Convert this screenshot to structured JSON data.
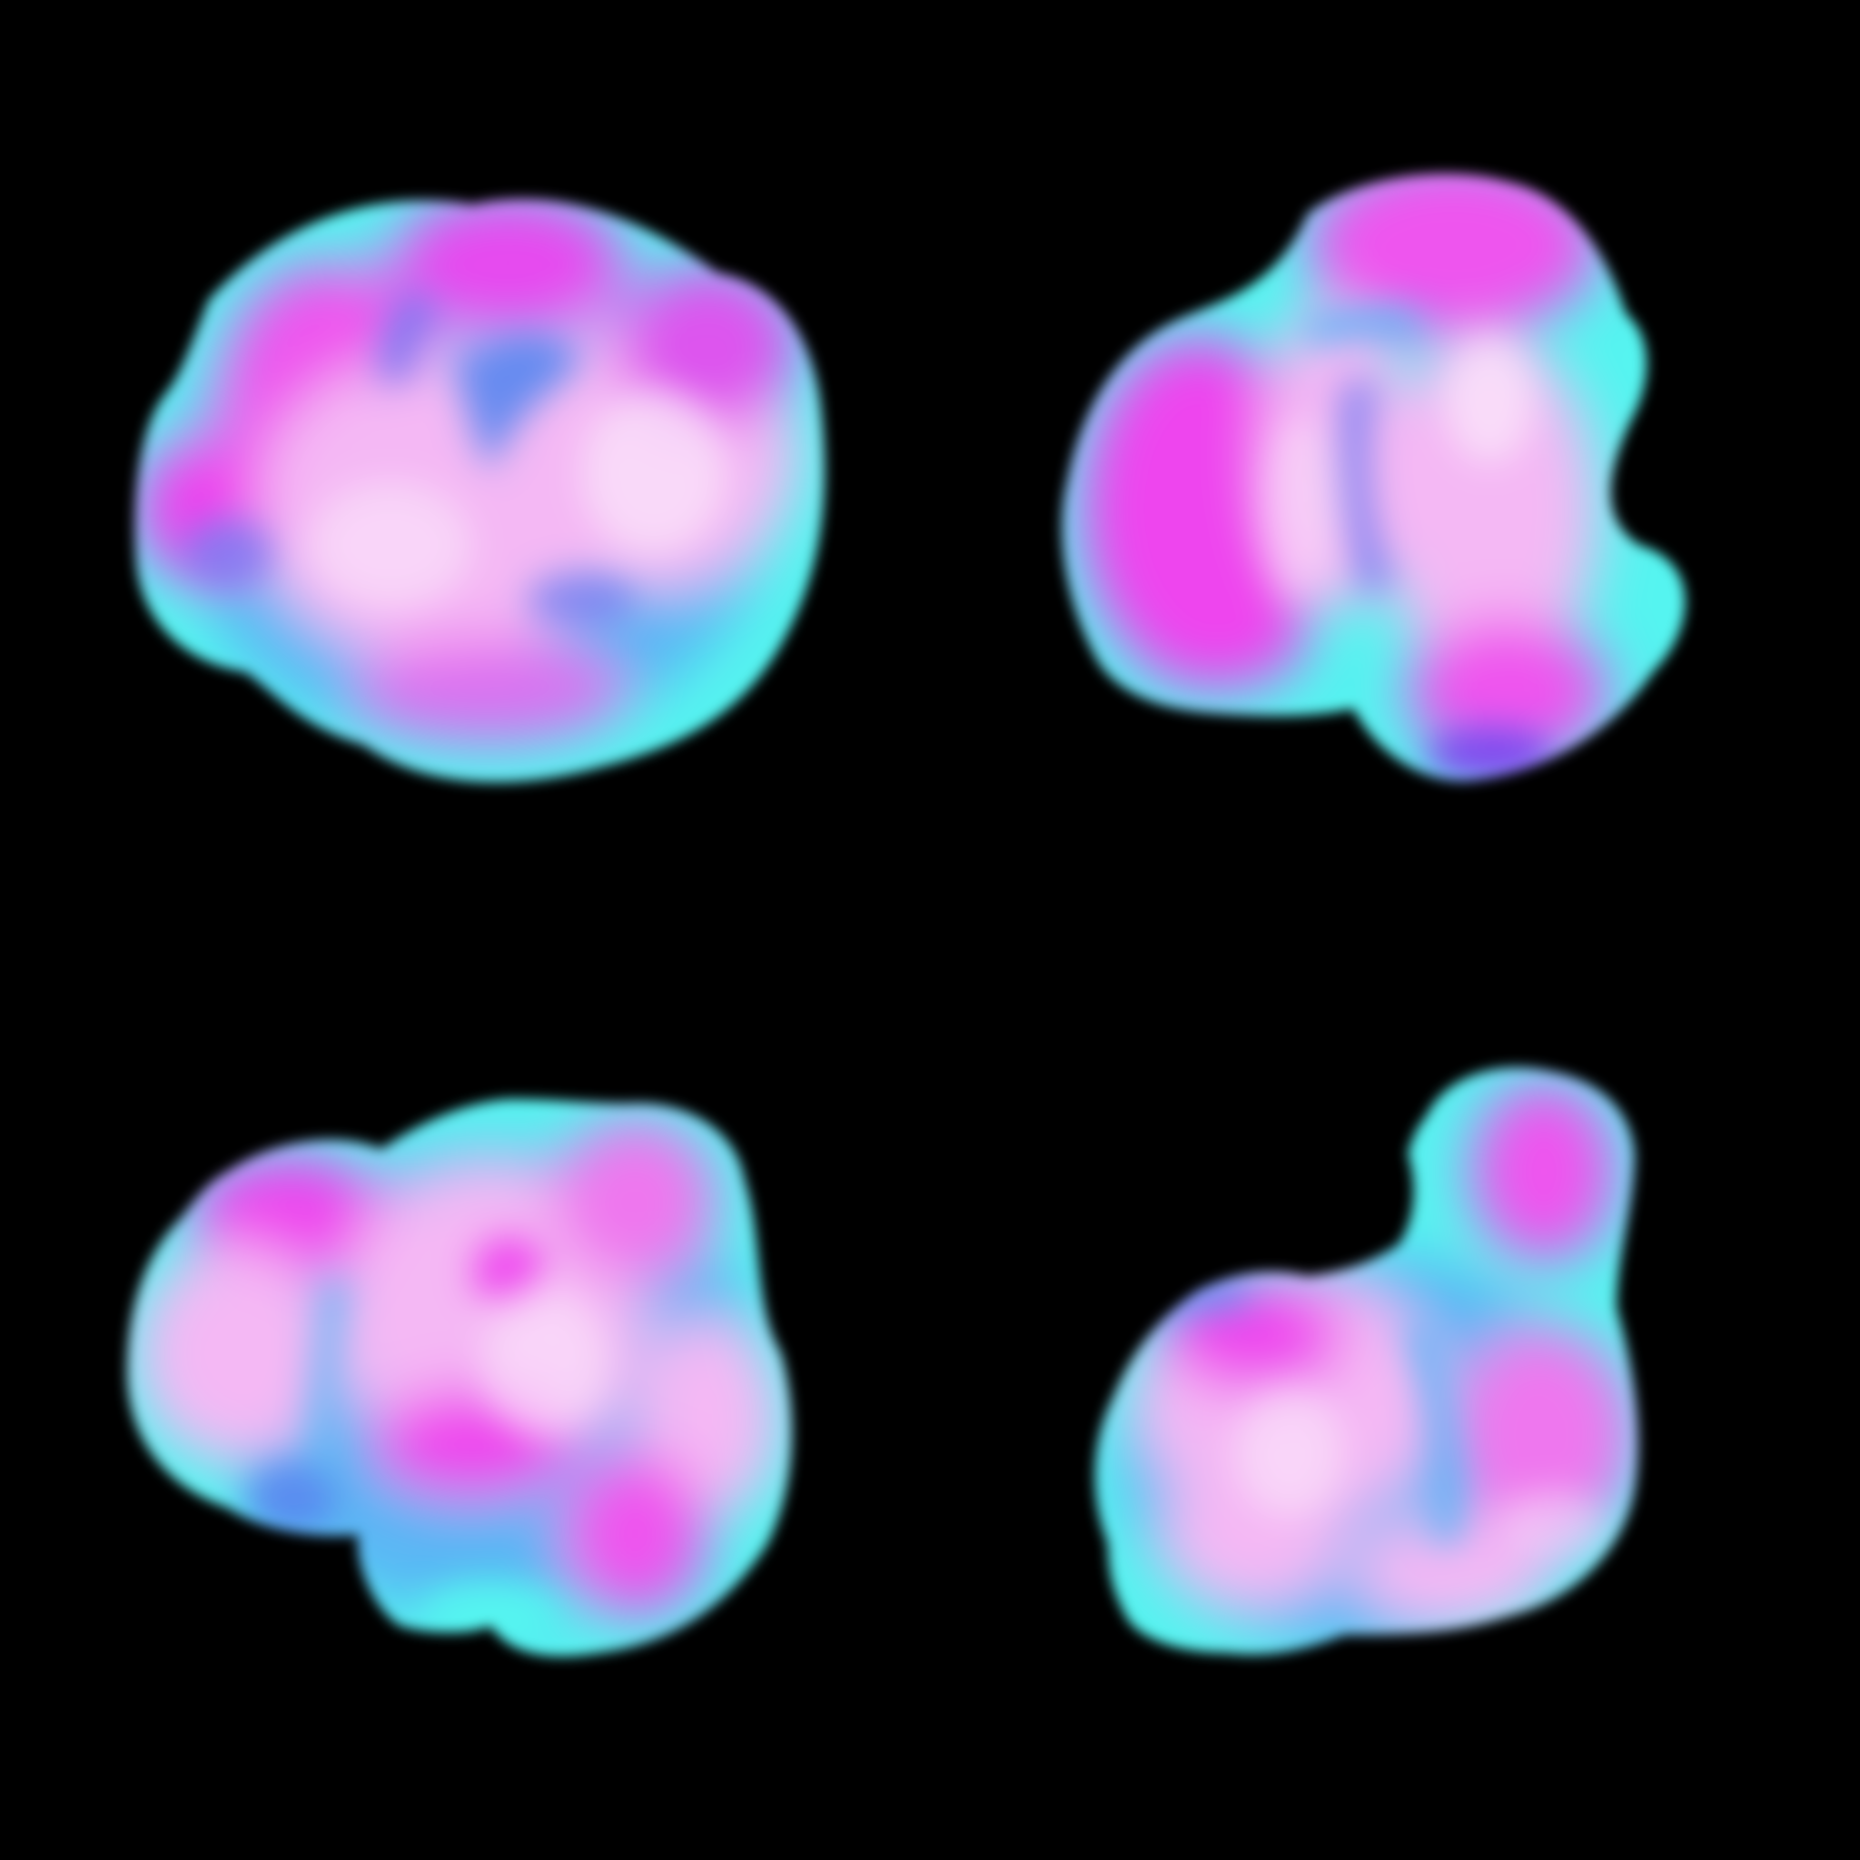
{
  "scene": {
    "background_color": "#000000",
    "subject": "iridescent-blobs",
    "blob_count": 4,
    "palette": {
      "magenta": "#ee44ee",
      "pink_light": "#f4b8f4",
      "lavender": "#d889ee",
      "cyan": "#55f4f0",
      "sky_blue": "#5ab6f4",
      "periwinkle": "#6a78f0",
      "violet": "#7a40ee",
      "white_highlight": "#fbe7fb"
    },
    "blobs": [
      {
        "name": "blob-top-left"
      },
      {
        "name": "blob-top-right"
      },
      {
        "name": "blob-bottom-left"
      },
      {
        "name": "blob-bottom-right"
      }
    ]
  }
}
